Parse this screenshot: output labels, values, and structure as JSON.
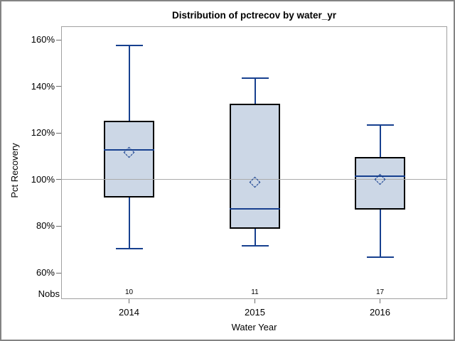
{
  "window": {
    "background": "#ffffff",
    "outer_border_color": "#848484"
  },
  "chart_data": {
    "type": "boxplot",
    "title": "Distribution of pctrecov by water_yr",
    "xlabel": "Water Year",
    "ylabel": "Pct Recovery",
    "y_axis": {
      "ticks": [
        {
          "value": 160,
          "label": "160%"
        },
        {
          "value": 140,
          "label": "140%"
        },
        {
          "value": 120,
          "label": "120%"
        },
        {
          "value": 100,
          "label": "100%"
        },
        {
          "value": 80,
          "label": "80%"
        },
        {
          "value": 60,
          "label": "60%"
        }
      ],
      "range_note": "axis shown from ~49% to ~166%, grid off"
    },
    "reference_line_value": 100,
    "nobs_row_label": "Nobs",
    "categories": [
      "2014",
      "2015",
      "2016"
    ],
    "nobs": [
      "10",
      "11",
      "17"
    ],
    "series": [
      {
        "category": "2014",
        "n": 10,
        "whisker_low": 70.4,
        "q1": 92.3,
        "median": 112.6,
        "mean": 111.5,
        "q3": 125.1,
        "whisker_high": 157.6
      },
      {
        "category": "2015",
        "n": 11,
        "whisker_low": 71.6,
        "q1": 78.9,
        "median": 87.3,
        "mean": 98.7,
        "q3": 132.5,
        "whisker_high": 143.4
      },
      {
        "category": "2016",
        "n": 17,
        "whisker_low": 66.7,
        "q1": 87.2,
        "median": 101.5,
        "mean": 100.0,
        "q3": 109.6,
        "whisker_high": 123.4
      }
    ],
    "legend": "none",
    "colors": {
      "box_fill": "#ccd7e6",
      "box_border": "#000000",
      "line_navy": "#17408f",
      "reference_line": "#ababab",
      "frame_gray": "#a0a0a0",
      "tick_gray": "#6e6e6e",
      "text": "#000000"
    }
  }
}
